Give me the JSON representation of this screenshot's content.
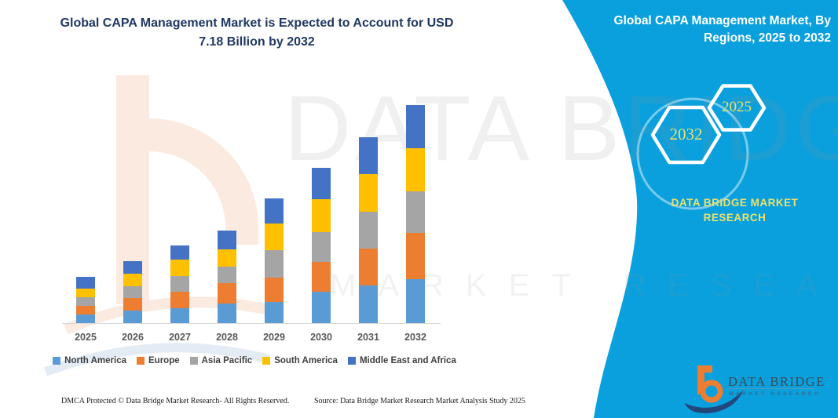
{
  "left": {
    "title": "Global CAPA Management Market is Expected to Account for USD 7.18 Billion by 2032",
    "footer_left": "DMCA Protected © Data Bridge Market Research-  All Rights Reserved.",
    "footer_source": "Source: Data Bridge Market Research  Market Analysis Study 2025"
  },
  "right_panel": {
    "title": "Global CAPA Management Market, By Regions, 2025 to 2032",
    "hexagons": [
      "2032",
      "2025"
    ],
    "brand_caption": "DATA BRIDGE MARKET RESEARCH",
    "logo_text": "DATA BRIDGE",
    "logo_subtext": "MARKET RESEARCH",
    "bg_color": "#0AA0DD",
    "accent_yellow": "#EDE06B"
  },
  "watermark": {
    "big_text": "DATA BRIDGE",
    "sub_text": "MARKET RESEARCH"
  },
  "chart_data": {
    "type": "bar",
    "stacked": true,
    "title": "Global CAPA Management Market is Expected to Account for USD 7.18 Billion by 2032",
    "unit": "USD Billion",
    "categories": [
      "2025",
      "2026",
      "2027",
      "2028",
      "2029",
      "2030",
      "2031",
      "2032"
    ],
    "series": [
      {
        "name": "North America",
        "color": "#5B9BD5",
        "values": [
          0.28,
          0.41,
          0.48,
          0.64,
          0.71,
          1.03,
          1.24,
          1.45
        ]
      },
      {
        "name": "Europe",
        "color": "#ED7D31",
        "values": [
          0.3,
          0.43,
          0.55,
          0.67,
          0.8,
          0.98,
          1.21,
          1.53
        ]
      },
      {
        "name": "Asia Pacific",
        "color": "#A5A5A5",
        "values": [
          0.28,
          0.38,
          0.52,
          0.55,
          0.9,
          1.0,
          1.23,
          1.37
        ]
      },
      {
        "name": "South America",
        "color": "#FFC000",
        "values": [
          0.29,
          0.41,
          0.54,
          0.57,
          0.86,
          1.07,
          1.22,
          1.42
        ]
      },
      {
        "name": "Middle East and Africa",
        "color": "#4472C4",
        "values": [
          0.37,
          0.41,
          0.46,
          0.62,
          0.84,
          1.04,
          1.23,
          1.41
        ]
      }
    ],
    "totals": [
      1.52,
      2.04,
      2.55,
      3.05,
      4.11,
      5.12,
      6.13,
      7.18
    ],
    "xlabel": "",
    "ylabel": "",
    "ylim": [
      0,
      7.5
    ],
    "grid": false,
    "legend_position": "bottom"
  }
}
